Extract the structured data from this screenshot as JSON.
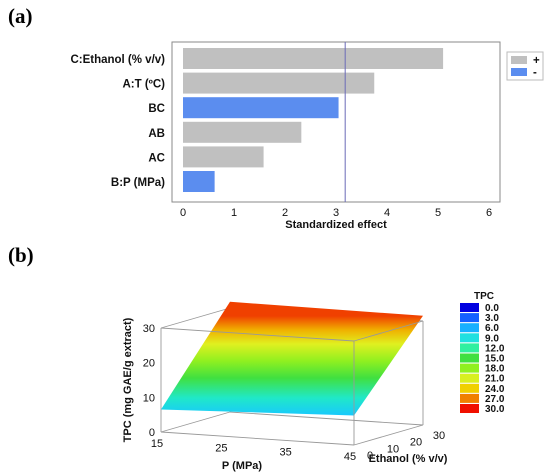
{
  "panels": {
    "a": "(a)",
    "b": "(b)"
  },
  "chart_data": [
    {
      "type": "bar",
      "orientation": "horizontal",
      "categories": [
        "C:Ethanol (% v/v)",
        "A:T (ºC)",
        "BC",
        "AB",
        "AC",
        "B:P (MPa)"
      ],
      "values": [
        5.1,
        3.75,
        3.05,
        2.32,
        1.58,
        0.62
      ],
      "signs": [
        "+",
        "+",
        "-",
        "+",
        "+",
        "-"
      ],
      "xlabel": "Standardized effect",
      "xlim": [
        0,
        6
      ],
      "xticks": [
        0,
        1,
        2,
        3,
        4,
        5,
        6
      ],
      "reference_line": 3.18,
      "legend": [
        {
          "label": "+",
          "color": "#c0c0c0"
        },
        {
          "label": "-",
          "color": "#5b8def"
        }
      ],
      "legend_position": "top-right",
      "colors": {
        "positive": "#c0c0c0",
        "negative": "#5b8def",
        "reference": "#6a6ab8"
      }
    },
    {
      "type": "surface",
      "xlabel": "P (MPa)",
      "ylabel": "Ethanol (% v/v)",
      "zlabel": "TPC (mg GAE/g extract)",
      "xlim": [
        15,
        45
      ],
      "ylim": [
        0,
        30
      ],
      "zlim": [
        0,
        30
      ],
      "xticks": [
        15,
        25,
        35,
        45
      ],
      "yticks": [
        0,
        10,
        20,
        30
      ],
      "zticks": [
        0,
        10,
        20,
        30
      ],
      "surface": {
        "corners": [
          {
            "P": 15,
            "Ethanol": 0,
            "TPC": 6.5
          },
          {
            "P": 45,
            "Ethanol": 0,
            "TPC": 8.5
          },
          {
            "P": 45,
            "Ethanol": 30,
            "TPC": 31.5
          },
          {
            "P": 15,
            "Ethanol": 30,
            "TPC": 31.8
          }
        ]
      },
      "colorbar": {
        "title": "TPC",
        "levels": [
          "0.0",
          "3.0",
          "6.0",
          "9.0",
          "12.0",
          "15.0",
          "18.0",
          "21.0",
          "24.0",
          "27.0",
          "30.0"
        ],
        "colors": [
          "#0000e0",
          "#1560ff",
          "#18b0ff",
          "#20e0e0",
          "#30f0a0",
          "#40e040",
          "#90f020",
          "#d8f020",
          "#f0d000",
          "#f08000",
          "#f01000"
        ]
      }
    }
  ]
}
